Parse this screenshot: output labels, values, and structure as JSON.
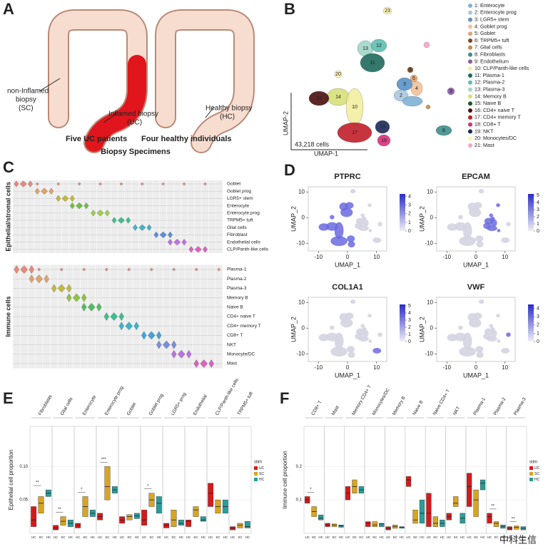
{
  "panel_a": {
    "letter": "A",
    "sc_label": [
      "non-Inflamed",
      "biopsy",
      "(SC)"
    ],
    "uc_label": [
      "Inflamed biopsy",
      "(UC)"
    ],
    "hc_label": [
      "Healthy biopsy",
      "(HC)"
    ],
    "left_caption": "Five UC patients",
    "right_caption": "Four healthy individuals",
    "title": "Biopsy Specimens"
  },
  "panel_b": {
    "letter": "B",
    "cell_count": "43,218 cells",
    "x_label": "UMAP-1",
    "y_label": "UMAP-2",
    "cluster_labels": [
      "23",
      "13",
      "12",
      "11",
      "20",
      "14",
      "10",
      "16",
      "17",
      "19",
      "18",
      "6",
      "5",
      "4",
      "3",
      "2",
      "9",
      "8"
    ],
    "legend": [
      {
        "name": "1: Enterocyte",
        "color": "#7fb2d6"
      },
      {
        "name": "2: Enterocyte prog",
        "color": "#a9c7e0"
      },
      {
        "name": "3: LGR5+ stem",
        "color": "#5b93c7"
      },
      {
        "name": "4: Goblet prog",
        "color": "#f2c29b"
      },
      {
        "name": "5: Goblet",
        "color": "#e8a268"
      },
      {
        "name": "6: TRPM5+ tuft",
        "color": "#7a4a1f"
      },
      {
        "name": "7: Glial cells",
        "color": "#c58b4a"
      },
      {
        "name": "8: Fibroblasts",
        "color": "#3e8f8a"
      },
      {
        "name": "9: Endothelium",
        "color": "#8a5aa8"
      },
      {
        "name": "10: CLP/Panth-like cells",
        "color": "#f3eea0"
      },
      {
        "name": "11: Plasma-1",
        "color": "#1f6b5c"
      },
      {
        "name": "12: Plasma-2",
        "color": "#5fbfb0"
      },
      {
        "name": "13: Plasma-3",
        "color": "#9fd8c8"
      },
      {
        "name": "14: Memory B",
        "color": "#d6e07a"
      },
      {
        "name": "15: Naive B",
        "color": "#1a5a2a"
      },
      {
        "name": "16: CD4+ naive T",
        "color": "#4a1010"
      },
      {
        "name": "17: CD4+ memory T",
        "color": "#c0202a"
      },
      {
        "name": "18: CD8+ T",
        "color": "#d6307a"
      },
      {
        "name": "19: NKT",
        "color": "#1a2a5a"
      },
      {
        "name": "20: Monocytes/DC",
        "color": "#fff3b0"
      },
      {
        "name": "21: Mast",
        "color": "#f4a6c8"
      }
    ]
  },
  "panel_c": {
    "letter": "C",
    "epithelial_label": "Epithelial/stromal cells",
    "epithelial_types": [
      "Goblet",
      "Goblet prog",
      "LGR5+ stem",
      "Enterocyte",
      "Enterocyte prog",
      "TRPM5+ tuft",
      "Glial cells",
      "Fibroblast",
      "Endothelial cells",
      "CLP/Panth-like cells"
    ],
    "immune_label": "Immune cells",
    "immune_types": [
      "Plasma-1",
      "Plasma-2",
      "Plasma-3",
      "Memory B",
      "Naive B",
      "CD4+ naive T",
      "CD4+ memory T",
      "CD8+ T",
      "NKT",
      "Monocyte/DC",
      "Mast"
    ]
  },
  "panel_d": {
    "letter": "D",
    "x_label": "UMAP_1",
    "y_label": "UMAP_2",
    "plots": [
      {
        "title": "PTPRC",
        "xlim": [
          -13.5,
          13.5
        ],
        "xticks": [
          -10,
          0,
          10
        ],
        "ylim": [
          -13,
          12
        ],
        "yticks": [
          -10,
          0,
          10
        ],
        "clim": [
          0,
          4.3
        ],
        "cticks": [
          0,
          1,
          2,
          3,
          4
        ]
      },
      {
        "title": "EPCAM",
        "xlim": [
          -13.5,
          13.5
        ],
        "xticks": [
          -10,
          0,
          10
        ],
        "ylim": [
          -13,
          12
        ],
        "yticks": [
          -10,
          0,
          10
        ],
        "clim": [
          0,
          5.2
        ],
        "cticks": [
          0,
          1,
          2,
          3,
          4,
          5
        ]
      },
      {
        "title": "COL1A1",
        "xlim": [
          -13.5,
          13.5
        ],
        "xticks": [
          -10,
          0,
          10
        ],
        "ylim": [
          -13,
          12
        ],
        "yticks": [
          -10,
          0,
          10
        ],
        "clim": [
          0,
          5.2
        ],
        "cticks": [
          0,
          1,
          2,
          3,
          4,
          5
        ]
      },
      {
        "title": "VWF",
        "xlim": [
          -13.5,
          13.5
        ],
        "xticks": [
          -10,
          0,
          10
        ],
        "ylim": [
          -13,
          12
        ],
        "yticks": [
          -10,
          0,
          10
        ],
        "clim": [
          0,
          4.5
        ],
        "cticks": [
          0,
          1,
          2,
          3,
          4
        ]
      }
    ]
  },
  "chart_data": [
    {
      "type": "box",
      "panel": "E",
      "y_label": "Epithelial cell proportion",
      "legend_title": "stim",
      "legend": "right",
      "grid": true,
      "categories": [
        "Fibroblasts",
        "Glial cells",
        "Enterocyte",
        "Enterocyte prog",
        "Goblet",
        "Goblet prog",
        "LGR5+ prog",
        "Endothelial",
        "CLP/Panth-like cells",
        "TRPM5+ tuft"
      ],
      "ylim": [
        0,
        0.16
      ],
      "yticks": [
        0.05,
        {
          "value": 0.1,
          "label": "0.10"
        }
      ],
      "significance": [
        "**",
        "**",
        "*",
        "***",
        null,
        "*",
        null,
        null,
        null,
        null
      ],
      "series": [
        {
          "name": "UC",
          "color": "#d7191c",
          "values": [
            [
              0.01,
              0.02,
              0.04
            ],
            [
              0.005,
              0.008,
              0.012
            ],
            [
              0.008,
              0.012,
              0.015
            ],
            [
              0.02,
              0.025,
              0.03
            ],
            [
              0.015,
              0.02,
              0.025
            ],
            [
              0.012,
              0.02,
              0.035
            ],
            [
              0.008,
              0.012,
              0.015
            ],
            [
              0.01,
              0.018,
              0.02
            ],
            [
              0.04,
              0.06,
              0.075
            ],
            [
              0.005,
              0.008,
              0.01
            ]
          ]
        },
        {
          "name": "SC",
          "color": "#d9a520",
          "values": [
            [
              0.03,
              0.045,
              0.055
            ],
            [
              0.012,
              0.018,
              0.025
            ],
            [
              0.025,
              0.04,
              0.055
            ],
            [
              0.05,
              0.07,
              0.1
            ],
            [
              0.02,
              0.025,
              0.028
            ],
            [
              0.04,
              0.05,
              0.06
            ],
            [
              0.01,
              0.02,
              0.035
            ],
            [
              0.025,
              0.035,
              0.04
            ],
            [
              0.03,
              0.04,
              0.05
            ],
            [
              0.008,
              0.012,
              0.015
            ]
          ]
        },
        {
          "name": "HC",
          "color": "#2a9d9a",
          "values": [
            [
              0.055,
              0.06,
              0.065
            ],
            [
              0.01,
              0.015,
              0.02
            ],
            [
              0.025,
              0.03,
              0.035
            ],
            [
              0.06,
              0.065,
              0.07
            ],
            [
              0.022,
              0.026,
              0.03
            ],
            [
              0.03,
              0.045,
              0.055
            ],
            [
              0.012,
              0.015,
              0.02
            ],
            [
              0.018,
              0.02,
              0.025
            ],
            [
              0.03,
              0.04,
              0.05
            ],
            [
              0.008,
              0.01,
              0.018
            ]
          ]
        }
      ]
    },
    {
      "type": "box",
      "panel": "F",
      "y_label": "Immune cell proportion",
      "legend_title": "stim",
      "legend": "right",
      "grid": true,
      "categories": [
        "CD8+ T",
        "Mast",
        "Memory CD4+ T",
        "Monocytes/DC",
        "Memory B",
        "Naive B",
        "Naive CD4+ T",
        "NKT",
        "Plasma-1",
        "Plasma-2",
        "Plasma-3"
      ],
      "ylim": [
        0,
        0.32
      ],
      "yticks": [
        0.1,
        0.2
      ],
      "significance": [
        "*",
        null,
        null,
        null,
        null,
        null,
        null,
        null,
        null,
        "**",
        "**"
      ],
      "series": [
        {
          "name": "UC",
          "color": "#d7191c",
          "values": [
            [
              0.09,
              0.1,
              0.11
            ],
            [
              0.02,
              0.025,
              0.03
            ],
            [
              0.1,
              0.12,
              0.14
            ],
            [
              0.02,
              0.03,
              0.035
            ],
            [
              0.01,
              0.015,
              0.02
            ],
            [
              0.14,
              0.16,
              0.17
            ],
            [
              0.02,
              0.06,
              0.12
            ],
            [
              0.04,
              0.05,
              0.06
            ],
            [
              0.08,
              0.14,
              0.18
            ],
            [
              0.03,
              0.05,
              0.06
            ],
            [
              0.01,
              0.015,
              0.02
            ]
          ]
        },
        {
          "name": "SC",
          "color": "#d9a520",
          "values": [
            [
              0.05,
              0.065,
              0.08
            ],
            [
              0.02,
              0.025,
              0.028
            ],
            [
              0.12,
              0.14,
              0.16
            ],
            [
              0.02,
              0.025,
              0.035
            ],
            [
              0.015,
              0.02,
              0.025
            ],
            [
              0.03,
              0.04,
              0.07
            ],
            [
              0.02,
              0.03,
              0.05
            ],
            [
              0.08,
              0.09,
              0.11
            ],
            [
              0.05,
              0.1,
              0.13
            ],
            [
              0.02,
              0.03,
              0.035
            ],
            [
              0.012,
              0.018,
              0.022
            ]
          ]
        },
        {
          "name": "HC",
          "color": "#2a9d9a",
          "values": [
            [
              0.04,
              0.045,
              0.055
            ],
            [
              0.018,
              0.022,
              0.025
            ],
            [
              0.12,
              0.13,
              0.14
            ],
            [
              0.02,
              0.028,
              0.03
            ],
            [
              0.015,
              0.018,
              0.02
            ],
            [
              0.03,
              0.06,
              0.1
            ],
            [
              0.02,
              0.03,
              0.04
            ],
            [
              0.03,
              0.045,
              0.06
            ],
            [
              0.13,
              0.15,
              0.16
            ],
            [
              0.015,
              0.02,
              0.025
            ],
            [
              0.01,
              0.015,
              0.02
            ]
          ]
        }
      ]
    }
  ],
  "watermark": "中科生信"
}
